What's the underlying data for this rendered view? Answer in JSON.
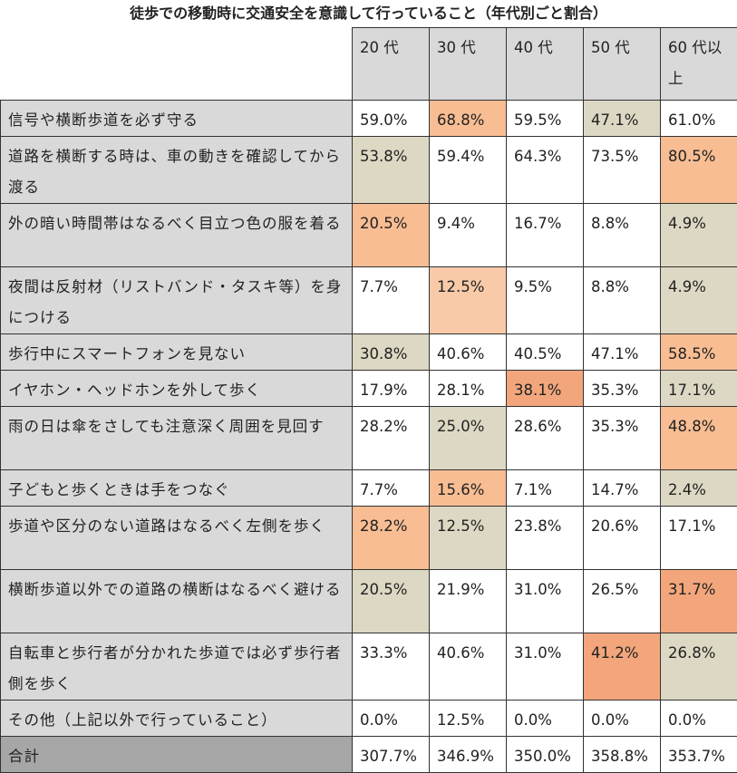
{
  "title": "徒歩での移動時に交通安全を意識して行っていること（年代別ごと割合）",
  "table": {
    "columns": [
      "20 代",
      "30 代",
      "40 代",
      "50 代",
      "60 代以上"
    ],
    "rows": [
      {
        "label": "信号や横断歩道を必ず守る",
        "values": [
          "59.0%",
          "68.8%",
          "59.5%",
          "47.1%",
          "61.0%"
        ]
      },
      {
        "label": "道路を横断する時は、車の動きを確認してから渡る",
        "values": [
          "53.8%",
          "59.4%",
          "64.3%",
          "73.5%",
          "80.5%"
        ]
      },
      {
        "label": "外の暗い時間帯はなるべく目立つ色の服を着る",
        "values": [
          "20.5%",
          "9.4%",
          "16.7%",
          "8.8%",
          "4.9%"
        ]
      },
      {
        "label": "夜間は反射材（リストバンド・タスキ等）を身につける",
        "values": [
          "7.7%",
          "12.5%",
          "9.5%",
          "8.8%",
          "4.9%"
        ]
      },
      {
        "label": "歩行中にスマートフォンを見ない",
        "values": [
          "30.8%",
          "40.6%",
          "40.5%",
          "47.1%",
          "58.5%"
        ]
      },
      {
        "label": "イヤホン・ヘッドホンを外して歩く",
        "values": [
          "17.9%",
          "28.1%",
          "38.1%",
          "35.3%",
          "17.1%"
        ]
      },
      {
        "label": "雨の日は傘をさしても注意深く周囲を見回す",
        "values": [
          "28.2%",
          "25.0%",
          "28.6%",
          "35.3%",
          "48.8%"
        ]
      },
      {
        "label": "子どもと歩くときは手をつなぐ",
        "values": [
          "7.7%",
          "15.6%",
          "7.1%",
          "14.7%",
          "2.4%"
        ]
      },
      {
        "label": "歩道や区分のない道路はなるべく左側を歩く",
        "values": [
          "28.2%",
          "12.5%",
          "23.8%",
          "20.6%",
          "17.1%"
        ]
      },
      {
        "label": "横断歩道以外での道路の横断はなるべく避ける",
        "values": [
          "20.5%",
          "21.9%",
          "31.0%",
          "26.5%",
          "31.7%"
        ]
      },
      {
        "label": "自転車と歩行者が分かれた歩道では必ず歩行者側を歩く",
        "values": [
          "33.3%",
          "40.6%",
          "31.0%",
          "41.2%",
          "26.8%"
        ]
      },
      {
        "label": "その他（上記以外で行っていること）",
        "values": [
          "0.0%",
          "12.5%",
          "0.0%",
          "0.0%",
          "0.0%"
        ]
      }
    ],
    "total": {
      "label": "合計",
      "values": [
        "307.7%",
        "346.9%",
        "350.0%",
        "358.8%",
        "353.7%"
      ]
    }
  }
}
